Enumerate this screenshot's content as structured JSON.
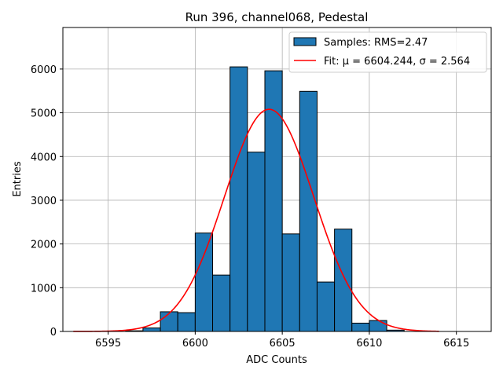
{
  "chart_data": {
    "type": "bar",
    "title": "Run 396, channel068, Pedestal",
    "xlabel": "ADC Counts",
    "ylabel": "Entries",
    "xlim": [
      6592.4,
      6617.0
    ],
    "ylim": [
      0,
      6950
    ],
    "xticks": [
      6595,
      6600,
      6605,
      6610,
      6615
    ],
    "yticks": [
      0,
      1000,
      2000,
      3000,
      4000,
      5000,
      6000
    ],
    "grid": true,
    "legend_position": "top-right",
    "histogram": {
      "name": "Samples: RMS=2.47",
      "color": "#1f77b4",
      "bin_edges": [
        6596,
        6597,
        6598,
        6599,
        6600,
        6601,
        6602,
        6603,
        6604,
        6605,
        6606,
        6607,
        6608,
        6609,
        6610,
        6611,
        6612
      ],
      "counts": [
        15,
        80,
        450,
        430,
        2250,
        1290,
        6050,
        4100,
        5960,
        2230,
        5490,
        1130,
        2340,
        190,
        250,
        30
      ]
    },
    "fit": {
      "name": "Fit: μ = 6604.244, σ = 2.564",
      "color": "#ff0000",
      "mu": 6604.244,
      "sigma": 2.564,
      "amplitude": 5080,
      "x_range": [
        6593,
        6614
      ]
    }
  }
}
